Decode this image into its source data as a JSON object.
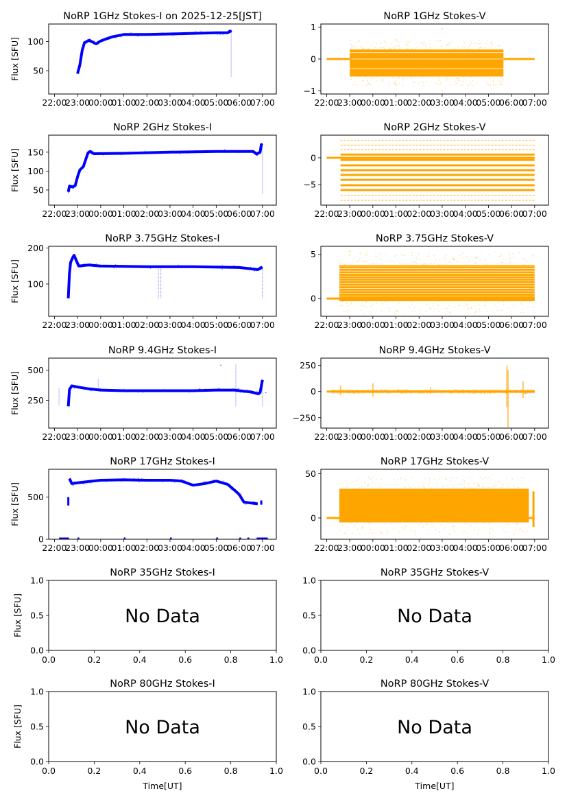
{
  "figure": {
    "time_ticks": [
      "22:00",
      "23:00",
      "00:00",
      "01:00",
      "02:00",
      "03:00",
      "04:00",
      "05:00",
      "06:00",
      "07:00"
    ],
    "ylabel": "Flux [SFU]",
    "xlabel": "Time[UT]",
    "no_data_text": "No Data",
    "colors": {
      "stokes_i": "#0000ff",
      "stokes_v": "#ffa500",
      "axis": "#000000"
    }
  },
  "chart_data": [
    {
      "id": "1ghz-i",
      "type": "scatter",
      "title": "NoRP 1GHz Stokes-I on 2025-12-25[JST]",
      "col": 0,
      "row": 0,
      "ylabel": "Flux [SFU]",
      "xlim": [
        -0.25,
        9.6
      ],
      "ylim": [
        10,
        130
      ],
      "yticks": [
        50,
        100
      ],
      "ytick_labels": [
        "50",
        "100"
      ],
      "series": [
        {
          "name": "Stokes-I",
          "color": "#0000ff",
          "points": [
            [
              1.0,
              45
            ],
            [
              1.1,
              60
            ],
            [
              1.2,
              85
            ],
            [
              1.3,
              98
            ],
            [
              1.5,
              102
            ],
            [
              1.6,
              100
            ],
            [
              1.8,
              96
            ],
            [
              2.0,
              101
            ],
            [
              2.2,
              104
            ],
            [
              2.5,
              108
            ],
            [
              3.0,
              112
            ],
            [
              4.0,
              112
            ],
            [
              5.0,
              113
            ],
            [
              6.0,
              114
            ],
            [
              7.0,
              115
            ],
            [
              7.5,
              115
            ],
            [
              7.6,
              118
            ],
            [
              7.65,
              116
            ]
          ],
          "spikes": [
            [
              7.65,
              40,
              118
            ]
          ]
        }
      ]
    },
    {
      "id": "1ghz-v",
      "type": "scatter",
      "title": "NoRP 1GHz Stokes-V",
      "col": 1,
      "row": 0,
      "ylabel": "",
      "xlim": [
        -0.25,
        9.6
      ],
      "ylim": [
        -1.1,
        1.1
      ],
      "yticks": [
        -1,
        0,
        1
      ],
      "ytick_labels": [
        "−1",
        "0",
        "1"
      ],
      "series": [
        {
          "name": "Stokes-V",
          "color": "#ffa500",
          "baseline": [
            [
              0.0,
              0
            ],
            [
              9.0,
              0
            ]
          ],
          "band": {
            "x": [
              1.0,
              7.65
            ],
            "low": -0.55,
            "high": 0.3
          },
          "outliers": [
            [
              3.0,
              0.6
            ],
            [
              3.0,
              -0.8
            ],
            [
              5.0,
              0.95
            ],
            [
              5.0,
              -1.0
            ]
          ]
        }
      ]
    },
    {
      "id": "2ghz-i",
      "type": "scatter",
      "title": "NoRP 2GHz Stokes-I",
      "col": 0,
      "row": 1,
      "ylabel": "Flux [SFU]",
      "xlim": [
        -0.25,
        9.6
      ],
      "ylim": [
        10,
        195
      ],
      "yticks": [
        50,
        100,
        150
      ],
      "ytick_labels": [
        "50",
        "100",
        "150"
      ],
      "series": [
        {
          "name": "Stokes-I",
          "color": "#0000ff",
          "points": [
            [
              0.6,
              45
            ],
            [
              0.65,
              60
            ],
            [
              0.8,
              58
            ],
            [
              0.9,
              62
            ],
            [
              1.0,
              85
            ],
            [
              1.1,
              103
            ],
            [
              1.25,
              112
            ],
            [
              1.45,
              148
            ],
            [
              1.55,
              152
            ],
            [
              1.7,
              146
            ],
            [
              3.0,
              147
            ],
            [
              5.0,
              150
            ],
            [
              7.0,
              152
            ],
            [
              8.6,
              152
            ],
            [
              8.75,
              145
            ],
            [
              8.9,
              150
            ],
            [
              8.95,
              170
            ],
            [
              9.0,
              168
            ]
          ],
          "spikes": [
            [
              9.0,
              40,
              170
            ]
          ]
        }
      ]
    },
    {
      "id": "2ghz-v",
      "type": "scatter",
      "title": "NoRP 2GHz Stokes-V",
      "col": 1,
      "row": 1,
      "ylabel": "",
      "xlim": [
        -0.25,
        9.6
      ],
      "ylim": [
        -8.8,
        4.2
      ],
      "yticks": [
        -5,
        0
      ],
      "ytick_labels": [
        "−5",
        "0"
      ],
      "series": [
        {
          "name": "Stokes-V",
          "color": "#ffa500",
          "baseline": [
            [
              0.0,
              0
            ],
            [
              9.0,
              0
            ]
          ],
          "levels": [
            3.2,
            2.3,
            1.5,
            0.6,
            -0.4,
            -1.4,
            -2.3,
            -3.2,
            -4.1,
            -5.1,
            -6.0,
            -7.0,
            -7.9
          ],
          "band_x": [
            0.6,
            9.0
          ]
        }
      ]
    },
    {
      "id": "375ghz-i",
      "type": "scatter",
      "title": "NoRP 3.75GHz Stokes-I",
      "col": 0,
      "row": 2,
      "ylabel": "Flux [SFU]",
      "xlim": [
        -0.25,
        9.6
      ],
      "ylim": [
        10,
        205
      ],
      "yticks": [
        100,
        200
      ],
      "ytick_labels": [
        "100",
        "200"
      ],
      "series": [
        {
          "name": "Stokes-I",
          "color": "#0000ff",
          "points": [
            [
              0.6,
              60
            ],
            [
              0.65,
              130
            ],
            [
              0.7,
              160
            ],
            [
              0.8,
              175
            ],
            [
              0.85,
              180
            ],
            [
              0.95,
              165
            ],
            [
              1.05,
              150
            ],
            [
              1.5,
              153
            ],
            [
              2.0,
              150
            ],
            [
              4.0,
              148
            ],
            [
              6.0,
              148
            ],
            [
              8.0,
              146
            ],
            [
              8.8,
              140
            ],
            [
              9.0,
              147
            ]
          ],
          "spikes": [
            [
              4.5,
              60,
              148
            ],
            [
              4.6,
              60,
              148
            ],
            [
              9.0,
              60,
              147
            ]
          ]
        }
      ]
    },
    {
      "id": "375ghz-v",
      "type": "scatter",
      "title": "NoRP 3.75GHz Stokes-V",
      "col": 1,
      "row": 2,
      "ylabel": "",
      "xlim": [
        -0.25,
        9.6
      ],
      "ylim": [
        -2.0,
        5.9
      ],
      "yticks": [
        0,
        5
      ],
      "ytick_labels": [
        "0",
        "5"
      ],
      "series": [
        {
          "name": "Stokes-V",
          "color": "#ffa500",
          "baseline": [
            [
              0.0,
              0
            ],
            [
              9.0,
              0
            ]
          ],
          "band": {
            "x": [
              0.55,
              9.0
            ],
            "low": -0.3,
            "high": 3.8
          },
          "outliers": [
            [
              5.5,
              4.4
            ],
            [
              6.5,
              4.6
            ],
            [
              1.0,
              5.3
            ]
          ]
        }
      ]
    },
    {
      "id": "94ghz-i",
      "type": "scatter",
      "title": "NoRP 9.4GHz Stokes-I",
      "col": 0,
      "row": 3,
      "ylabel": "Flux [SFU]",
      "xlim": [
        -0.25,
        9.6
      ],
      "ylim": [
        20,
        600
      ],
      "yticks": [
        250,
        500
      ],
      "ytick_labels": [
        "250",
        "500"
      ],
      "series": [
        {
          "name": "Stokes-I",
          "color": "#0000ff",
          "points": [
            [
              0.6,
              200
            ],
            [
              0.65,
              340
            ],
            [
              0.75,
              370
            ],
            [
              1.0,
              360
            ],
            [
              1.5,
              345
            ],
            [
              2.0,
              335
            ],
            [
              3.0,
              330
            ],
            [
              4.0,
              330
            ],
            [
              5.0,
              330
            ],
            [
              6.0,
              330
            ],
            [
              7.0,
              335
            ],
            [
              7.8,
              335
            ],
            [
              8.0,
              330
            ],
            [
              8.5,
              320
            ],
            [
              8.8,
              305
            ],
            [
              8.9,
              315
            ],
            [
              9.0,
              420
            ]
          ],
          "spikes": [
            [
              0.2,
              210,
              350
            ],
            [
              7.85,
              200,
              550
            ],
            [
              9.0,
              200,
              430
            ],
            [
              1.9,
              330,
              430
            ],
            [
              0.65,
              200,
              350
            ]
          ],
          "outliers": [
            [
              7.2,
              540
            ],
            [
              9.15,
              315
            ]
          ]
        }
      ]
    },
    {
      "id": "94ghz-v",
      "type": "scatter",
      "title": "NoRP 9.4GHz Stokes-V",
      "col": 1,
      "row": 3,
      "ylabel": "",
      "xlim": [
        -0.25,
        9.6
      ],
      "ylim": [
        -350,
        320
      ],
      "yticks": [
        -250,
        0,
        250
      ],
      "ytick_labels": [
        "−250",
        "0",
        "250"
      ],
      "series": [
        {
          "name": "Stokes-V",
          "color": "#ffa500",
          "baseline": [
            [
              0.0,
              0
            ],
            [
              9.0,
              0
            ]
          ],
          "band": {
            "x": [
              0.2,
              9.0
            ],
            "low": -12,
            "high": 12
          },
          "bursts": [
            [
              0.6,
              60
            ],
            [
              2.0,
              80
            ],
            [
              4.5,
              40
            ],
            [
              7.8,
              250
            ],
            [
              7.85,
              -340
            ],
            [
              8.5,
              100
            ]
          ]
        }
      ]
    },
    {
      "id": "17ghz-i",
      "type": "scatter",
      "title": "NoRP 17GHz Stokes-I",
      "col": 0,
      "row": 4,
      "ylabel": "Flux [SFU]",
      "xlim": [
        -0.25,
        9.6
      ],
      "ylim": [
        0,
        830
      ],
      "yticks": [
        0,
        500
      ],
      "ytick_labels": [
        "0",
        "500"
      ],
      "series": [
        {
          "name": "Stokes-I",
          "color": "#0000ff",
          "points": [
            [
              0.65,
              720
            ],
            [
              0.75,
              660
            ],
            [
              1.0,
              670
            ],
            [
              2.0,
              700
            ],
            [
              3.0,
              705
            ],
            [
              4.0,
              700
            ],
            [
              5.0,
              700
            ],
            [
              5.5,
              690
            ],
            [
              6.0,
              640
            ],
            [
              6.5,
              660
            ],
            [
              7.0,
              690
            ],
            [
              7.5,
              650
            ],
            [
              7.8,
              580
            ],
            [
              8.0,
              530
            ],
            [
              8.2,
              440
            ],
            [
              8.5,
              430
            ],
            [
              8.8,
              420
            ]
          ],
          "segments": [
            [
              0.6,
              400,
              500
            ],
            [
              8.95,
              410,
              460
            ]
          ],
          "zero_runs": [
            [
              0.2,
              0.6
            ],
            [
              1.0,
              1.05
            ],
            [
              3.0,
              3.05
            ],
            [
              5.0,
              5.05
            ],
            [
              7.0,
              7.05
            ],
            [
              8.0,
              8.05
            ],
            [
              8.35,
              8.4
            ],
            [
              8.75,
              9.2
            ]
          ]
        }
      ]
    },
    {
      "id": "17ghz-v",
      "type": "scatter",
      "title": "NoRP 17GHz Stokes-V",
      "col": 1,
      "row": 4,
      "ylabel": "",
      "xlim": [
        -0.25,
        9.6
      ],
      "ylim": [
        -24,
        55
      ],
      "yticks": [
        0,
        50
      ],
      "ytick_labels": [
        "0",
        "50"
      ],
      "series": [
        {
          "name": "Stokes-V",
          "color": "#ffa500",
          "baseline": [
            [
              0.0,
              0
            ],
            [
              9.0,
              0
            ]
          ],
          "band": {
            "x": [
              0.55,
              8.75
            ],
            "low": -5,
            "high": 33
          },
          "spike": [
            8.95,
            -10,
            30
          ]
        }
      ]
    },
    {
      "id": "35ghz-i",
      "type": "empty",
      "title": "NoRP 35GHz Stokes-I",
      "col": 0,
      "row": 5,
      "ylabel": "Flux [SFU]",
      "xlim": [
        0,
        1
      ],
      "ylim": [
        0,
        1
      ],
      "yticks": [
        0,
        0.5,
        1
      ],
      "ytick_labels": [
        "0.0",
        "0.5",
        "1.0"
      ],
      "xticks": [
        0,
        0.2,
        0.4,
        0.6,
        0.8,
        1
      ],
      "xtick_labels": [
        "0.0",
        "0.2",
        "0.4",
        "0.6",
        "0.8",
        "1.0"
      ],
      "annotation": "No Data"
    },
    {
      "id": "35ghz-v",
      "type": "empty",
      "title": "NoRP 35GHz Stokes-V",
      "col": 1,
      "row": 5,
      "ylabel": "",
      "xlim": [
        0,
        1
      ],
      "ylim": [
        0,
        1
      ],
      "yticks": [
        0,
        0.5,
        1
      ],
      "ytick_labels": [
        "0.0",
        "0.5",
        "1.0"
      ],
      "xticks": [
        0,
        0.2,
        0.4,
        0.6,
        0.8,
        1
      ],
      "xtick_labels": [
        "0.0",
        "0.2",
        "0.4",
        "0.6",
        "0.8",
        "1.0"
      ],
      "annotation": "No Data"
    },
    {
      "id": "80ghz-i",
      "type": "empty",
      "title": "NoRP 80GHz Stokes-I",
      "col": 0,
      "row": 6,
      "ylabel": "Flux [SFU]",
      "xlabel": "Time[UT]",
      "xlim": [
        0,
        1
      ],
      "ylim": [
        0,
        1
      ],
      "yticks": [
        0,
        0.5,
        1
      ],
      "ytick_labels": [
        "0.0",
        "0.5",
        "1.0"
      ],
      "xticks": [
        0,
        0.2,
        0.4,
        0.6,
        0.8,
        1
      ],
      "xtick_labels": [
        "0.0",
        "0.2",
        "0.4",
        "0.6",
        "0.8",
        "1.0"
      ],
      "annotation": "No Data"
    },
    {
      "id": "80ghz-v",
      "type": "empty",
      "title": "NoRP 80GHz Stokes-V",
      "col": 1,
      "row": 6,
      "ylabel": "",
      "xlabel": "Time[UT]",
      "xlim": [
        0,
        1
      ],
      "ylim": [
        0,
        1
      ],
      "yticks": [
        0,
        0.5,
        1
      ],
      "ytick_labels": [
        "0.0",
        "0.5",
        "1.0"
      ],
      "xticks": [
        0,
        0.2,
        0.4,
        0.6,
        0.8,
        1
      ],
      "xtick_labels": [
        "0.0",
        "0.2",
        "0.4",
        "0.6",
        "0.8",
        "1.0"
      ],
      "annotation": "No Data"
    }
  ]
}
